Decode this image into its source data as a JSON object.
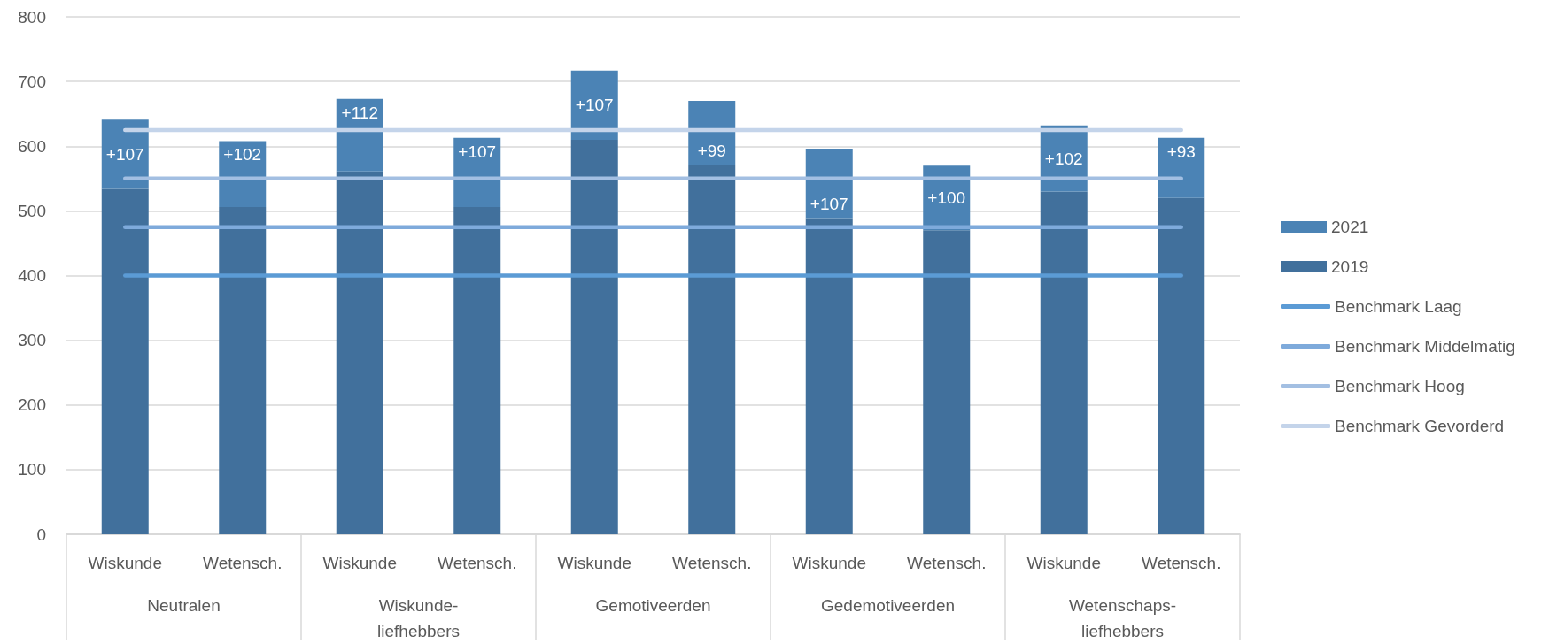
{
  "chart_data": {
    "type": "bar",
    "stacked": true,
    "categories": [
      "Wiskunde",
      "Wetensch.",
      "Wiskunde",
      "Wetensch.",
      "Wiskunde",
      "Wetensch.",
      "Wiskunde",
      "Wetensch.",
      "Wiskunde",
      "Wetensch."
    ],
    "annotations": [
      "Neutralen",
      "Wiskunde-liefhebbers",
      "Gemotiveerden",
      "Gedemotiveerden",
      "Wetenschaps-liefhebbers"
    ],
    "series": [
      {
        "name": "2019",
        "color": "#41709c",
        "values": [
          534,
          506,
          561,
          506,
          610,
          571,
          489,
          470,
          530,
          520
        ]
      },
      {
        "name": "2021",
        "color": "#4b83b5",
        "values": [
          107,
          102,
          112,
          107,
          107,
          99,
          107,
          100,
          102,
          93
        ],
        "value_labels": [
          "+107",
          "+102",
          "+112",
          "+107",
          "+107",
          "+99",
          "+107",
          "+100",
          "+102",
          "+93"
        ]
      },
      {
        "name": "Benchmark Laag",
        "type": "line",
        "color": "#5b9bd5",
        "values": [
          400,
          400,
          400,
          400,
          400,
          400,
          400,
          400,
          400,
          400
        ]
      },
      {
        "name": "Benchmark Middelmatig",
        "type": "line",
        "color": "#7eaadb",
        "values": [
          475,
          475,
          475,
          475,
          475,
          475,
          475,
          475,
          475,
          475
        ]
      },
      {
        "name": "Benchmark Hoog",
        "type": "line",
        "color": "#a3bfe2",
        "values": [
          550,
          550,
          550,
          550,
          550,
          550,
          550,
          550,
          550,
          550
        ]
      },
      {
        "name": "Benchmark Gevorderd",
        "type": "line",
        "color": "#c4d4ea",
        "values": [
          625,
          625,
          625,
          625,
          625,
          625,
          625,
          625,
          625,
          625
        ]
      }
    ],
    "ylim": [
      0,
      800
    ],
    "yticks": [
      0,
      100,
      200,
      300,
      400,
      500,
      600,
      700,
      800
    ],
    "grid": "y",
    "legend": "right"
  }
}
